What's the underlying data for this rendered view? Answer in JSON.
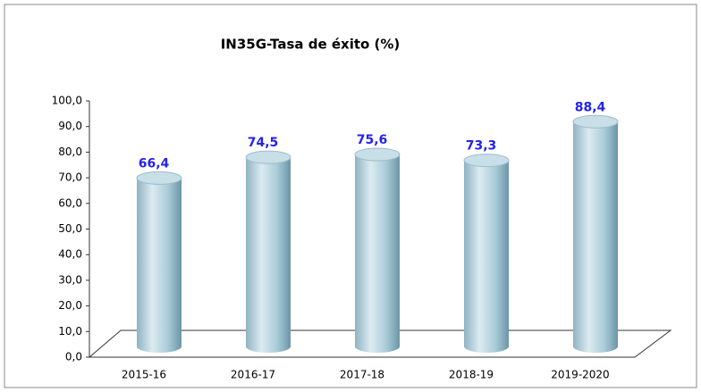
{
  "chart_data": {
    "type": "bar",
    "title": "IN35G-Tasa de éxito (%)",
    "categories": [
      "2015-16",
      "2016-17",
      "2017-18",
      "2018-19",
      "2019-2020"
    ],
    "values": [
      66.4,
      74.5,
      75.6,
      73.3,
      88.4
    ],
    "value_labels": [
      "66,4",
      "74,5",
      "75,6",
      "73,3",
      "88,4"
    ],
    "color": "#a9cbd8",
    "ylim": [
      0,
      100
    ],
    "yticks": [
      {
        "value": 0,
        "label": "0,0"
      },
      {
        "value": 10,
        "label": "10,0"
      },
      {
        "value": 20,
        "label": "20,0"
      },
      {
        "value": 30,
        "label": "30,0"
      },
      {
        "value": 40,
        "label": "40,0"
      },
      {
        "value": 50,
        "label": "50,0"
      },
      {
        "value": 60,
        "label": "60,0"
      },
      {
        "value": 70,
        "label": "70,0"
      },
      {
        "value": 80,
        "label": "80,0"
      },
      {
        "value": 90,
        "label": "90,0"
      },
      {
        "value": 100,
        "label": "100,0"
      }
    ],
    "grid": false
  }
}
